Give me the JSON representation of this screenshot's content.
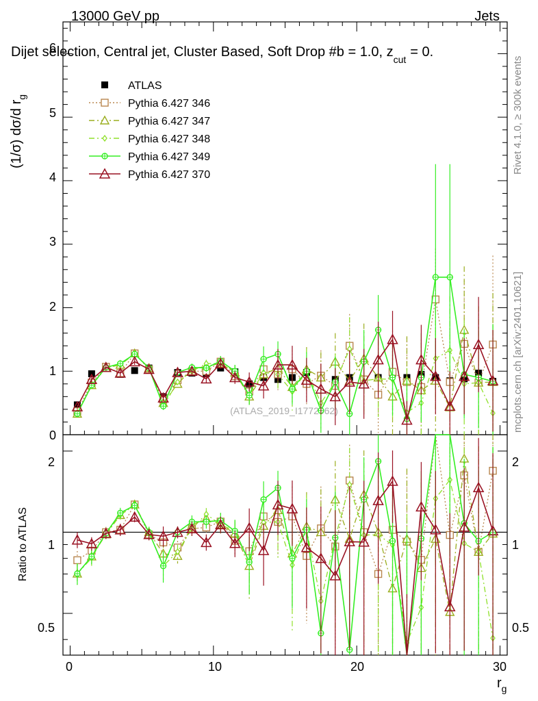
{
  "header": {
    "left": "13000 GeV pp",
    "right": "Jets",
    "selection": "Dijet selection, Central jet, Cluster Based, Soft Drop #b = 1.0, z",
    "zcut_sub": "cut",
    "zcut_value": "= 0.",
    "rivet_label": "Rivet 4.1.0, ≥ 300k events",
    "mcplots_label": "mcplots.cern.ch [arXiv:2401.10621]",
    "watermark": "(ATLAS_2019_I1772062)"
  },
  "axes": {
    "main_ylabel": "(1/σ) dσ/d r",
    "main_ylabel_sub": "g",
    "ratio_ylabel": "Ratio to ATLAS",
    "xlabel": "r",
    "xlabel_sub": "g",
    "x_ticks": [
      "0",
      "10",
      "20",
      "30"
    ],
    "main_y_ticks": [
      "0",
      "1",
      "2",
      "3",
      "4",
      "5",
      "6"
    ],
    "ratio_y_ticks": [
      "0.5",
      "1",
      "2"
    ],
    "ratio_y_ticks_right": [
      "0.5",
      "1",
      "2"
    ]
  },
  "legend": [
    {
      "label": "ATLAS",
      "color": "#000000",
      "marker": "filled-square",
      "dash": "none"
    },
    {
      "label": "Pythia 6.427 346",
      "color": "#b8864e",
      "marker": "open-square",
      "dash": "dotted"
    },
    {
      "label": "Pythia 6.427 347",
      "color": "#9aad1e",
      "marker": "open-triangle",
      "dash": "dash-dot"
    },
    {
      "label": "Pythia 6.427 348",
      "color": "#8fe02a",
      "marker": "open-diamond",
      "dash": "dash-dot"
    },
    {
      "label": "Pythia 6.427 349",
      "color": "#33ee22",
      "marker": "open-circle-cross",
      "dash": "solid"
    },
    {
      "label": "Pythia 6.427 370",
      "color": "#991122",
      "marker": "open-triangle-big",
      "dash": "solid"
    }
  ],
  "chart_data": {
    "type": "line",
    "x": [
      0.5,
      1.5,
      2.5,
      3.5,
      4.5,
      5.5,
      6.5,
      7.5,
      8.5,
      9.5,
      10.5,
      11.5,
      12.5,
      13.5,
      14.5,
      15.5,
      16.5,
      17.5,
      18.5,
      19.5,
      20.5,
      21.5,
      22.5,
      23.5,
      24.5,
      25.5,
      26.5,
      27.5,
      28.5,
      29.5
    ],
    "xlim": [
      -0.5,
      30.5
    ],
    "main_ylim": [
      0,
      6.5
    ],
    "ratio_ylim": [
      0.35,
      2.3
    ],
    "ratio_scale": "log",
    "reference": {
      "name": "ATLAS",
      "values": [
        0.47,
        0.96,
        1.07,
        0.95,
        1.01,
        1.05,
        0.6,
        0.98,
        0.97,
        0.96,
        1.05,
        0.99,
        0.8,
        0.9,
        0.87,
        0.9,
        0.98,
        0.9,
        0.87,
        0.9,
        0.87,
        0.9,
        0.97,
        0.9,
        0.95,
        0.9,
        0.85,
        0.88,
        0.97,
        0.84
      ]
    },
    "series": [
      {
        "name": "Pythia 6.427 346",
        "values": [
          0.37,
          0.82,
          1.07,
          0.97,
          1.28,
          1.03,
          0.55,
          0.86,
          1.0,
          1.0,
          1.15,
          0.92,
          0.68,
          1.03,
          0.95,
          1.03,
          0.8,
          0.93,
          0.77,
          1.4,
          0.87,
          0.63,
          0.99,
          0.83,
          0.75,
          2.13,
          0.83,
          1.43,
          0.82,
          1.42
        ],
        "err": [
          0.03,
          0.05,
          0.05,
          0.05,
          0.05,
          0.05,
          0.05,
          0.05,
          0.06,
          0.06,
          0.08,
          0.1,
          0.15,
          0.2,
          0.25,
          0.3,
          0.35,
          0.4,
          0.45,
          0.5,
          0.55,
          0.6,
          0.65,
          0.7,
          0.75,
          0.8,
          0.85,
          1.0,
          1.2,
          1.4
        ]
      },
      {
        "name": "Pythia 6.427 347",
        "values": [
          0.33,
          0.78,
          1.05,
          1.1,
          1.28,
          1.05,
          0.5,
          0.8,
          1.03,
          1.08,
          1.12,
          0.98,
          0.6,
          0.95,
          1.05,
          0.75,
          1.03,
          0.9,
          1.15,
          0.85,
          1.2,
          0.9,
          0.6,
          0.85,
          0.7,
          0.85,
          0.43,
          1.65,
          0.82,
          0.83
        ],
        "err": [
          0.03,
          0.05,
          0.05,
          0.05,
          0.05,
          0.05,
          0.05,
          0.05,
          0.06,
          0.06,
          0.08,
          0.1,
          0.15,
          0.2,
          0.25,
          0.3,
          0.35,
          0.4,
          0.45,
          0.5,
          0.55,
          0.6,
          0.65,
          0.7,
          0.75,
          0.8,
          0.85,
          1.0,
          1.2,
          1.4
        ]
      },
      {
        "name": "Pythia 6.427 348",
        "values": [
          0.33,
          0.77,
          1.06,
          1.1,
          1.27,
          1.05,
          0.45,
          0.83,
          1.0,
          1.12,
          1.12,
          1.0,
          0.62,
          0.98,
          0.95,
          0.68,
          1.0,
          0.5,
          0.83,
          1.35,
          0.85,
          0.88,
          0.87,
          0.35,
          0.5,
          1.2,
          1.33,
          0.8,
          0.82,
          0.34
        ],
        "err": [
          0.03,
          0.05,
          0.05,
          0.05,
          0.05,
          0.05,
          0.05,
          0.05,
          0.06,
          0.06,
          0.08,
          0.1,
          0.15,
          0.2,
          0.25,
          0.3,
          0.35,
          0.4,
          0.45,
          0.5,
          0.55,
          0.6,
          0.65,
          0.7,
          0.75,
          0.8,
          0.85,
          1.0,
          1.2,
          1.4
        ]
      },
      {
        "name": "Pythia 6.427 349",
        "values": [
          0.33,
          0.78,
          1.06,
          1.12,
          1.27,
          1.05,
          0.45,
          0.98,
          1.06,
          1.05,
          1.16,
          1.0,
          0.62,
          1.19,
          1.27,
          0.72,
          1.0,
          0.38,
          0.83,
          0.33,
          1.15,
          1.65,
          0.9,
          0.25,
          0.9,
          2.48,
          2.48,
          0.95,
          0.9,
          0.84
        ],
        "err": [
          0.03,
          0.05,
          0.05,
          0.05,
          0.05,
          0.05,
          0.06,
          0.05,
          0.06,
          0.06,
          0.08,
          0.1,
          0.15,
          0.2,
          0.2,
          0.25,
          0.3,
          0.35,
          0.4,
          0.45,
          0.5,
          0.55,
          0.6,
          0.65,
          0.7,
          1.78,
          1.78,
          0.7,
          0.8,
          0.9
        ]
      },
      {
        "name": "Pythia 6.427 370",
        "values": [
          0.44,
          0.87,
          1.06,
          0.97,
          1.15,
          1.03,
          0.58,
          0.98,
          1.0,
          0.88,
          1.12,
          0.9,
          0.83,
          0.77,
          1.1,
          1.1,
          0.86,
          0.72,
          0.6,
          0.83,
          0.8,
          1.18,
          1.5,
          0.23,
          1.18,
          0.92,
          0.45,
          0.92,
          1.42,
          0.85
        ],
        "err": [
          0.03,
          0.05,
          0.05,
          0.05,
          0.05,
          0.05,
          0.05,
          0.05,
          0.06,
          0.06,
          0.08,
          0.1,
          0.15,
          0.2,
          0.25,
          0.3,
          0.35,
          0.4,
          0.45,
          0.5,
          0.55,
          0.6,
          0.45,
          0.3,
          0.55,
          0.6,
          0.55,
          0.6,
          0.75,
          0.8
        ]
      }
    ]
  }
}
